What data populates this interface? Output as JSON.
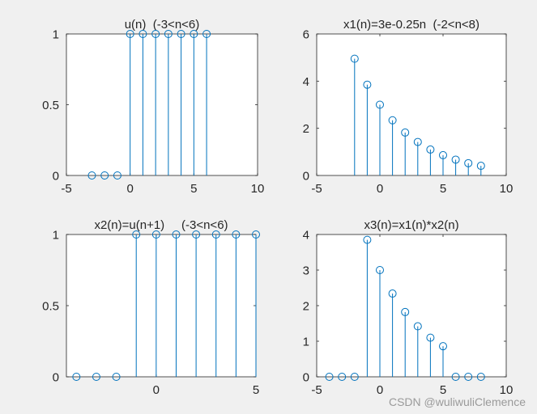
{
  "figure": {
    "background": "#f0f0f0",
    "axes_color": "#262626",
    "series_color": "#0072bd",
    "plot_background": "#ffffff"
  },
  "chart_data": [
    {
      "type": "stem",
      "title": "u(n)  (-3<n<6)",
      "xlabel": "",
      "ylabel": "",
      "xlim": [
        -5,
        10
      ],
      "ylim": [
        0,
        1
      ],
      "xticks": [
        -5,
        0,
        5,
        10
      ],
      "yticks": [
        0,
        0.5,
        1
      ],
      "x": [
        -3,
        -2,
        -1,
        0,
        1,
        2,
        3,
        4,
        5,
        6
      ],
      "values": [
        0,
        0,
        0,
        1,
        1,
        1,
        1,
        1,
        1,
        1
      ],
      "grid": false,
      "legend": false
    },
    {
      "type": "stem",
      "title": "x1(n)=3e-0.25n  (-2<n<8)",
      "xlabel": "",
      "ylabel": "",
      "xlim": [
        -5,
        10
      ],
      "ylim": [
        0,
        6
      ],
      "xticks": [
        -5,
        0,
        5,
        10
      ],
      "yticks": [
        0,
        2,
        4,
        6
      ],
      "x": [
        -2,
        -1,
        0,
        1,
        2,
        3,
        4,
        5,
        6,
        7,
        8
      ],
      "values": [
        4.95,
        3.85,
        3.0,
        2.34,
        1.82,
        1.42,
        1.1,
        0.86,
        0.67,
        0.52,
        0.41
      ],
      "grid": false,
      "legend": false
    },
    {
      "type": "stem",
      "title": "x2(n)=u(n+1)     (-3<n<6)",
      "xlabel": "",
      "ylabel": "",
      "xlim": [
        -4.5,
        5
      ],
      "ylim": [
        0,
        1
      ],
      "xticks": [
        0,
        5
      ],
      "yticks": [
        0,
        0.5,
        1
      ],
      "x": [
        -4,
        -3,
        -2,
        -1,
        0,
        1,
        2,
        3,
        4,
        5
      ],
      "values": [
        0,
        0,
        0,
        1,
        1,
        1,
        1,
        1,
        1,
        1
      ],
      "grid": false,
      "legend": false
    },
    {
      "type": "stem",
      "title": "x3(n)=x1(n)*x2(n)",
      "xlabel": "",
      "ylabel": "",
      "xlim": [
        -5,
        10
      ],
      "ylim": [
        0,
        4
      ],
      "xticks": [
        -5,
        0,
        5,
        10
      ],
      "yticks": [
        0,
        1,
        2,
        3,
        4
      ],
      "x": [
        -4,
        -3,
        -2,
        -1,
        0,
        1,
        2,
        3,
        4,
        5,
        6,
        7,
        8
      ],
      "values": [
        0,
        0,
        0,
        3.85,
        3.0,
        2.34,
        1.82,
        1.42,
        1.1,
        0.86,
        0,
        0,
        0
      ],
      "grid": false,
      "legend": false
    }
  ],
  "watermark": "CSDN @wuliwuliClemence"
}
